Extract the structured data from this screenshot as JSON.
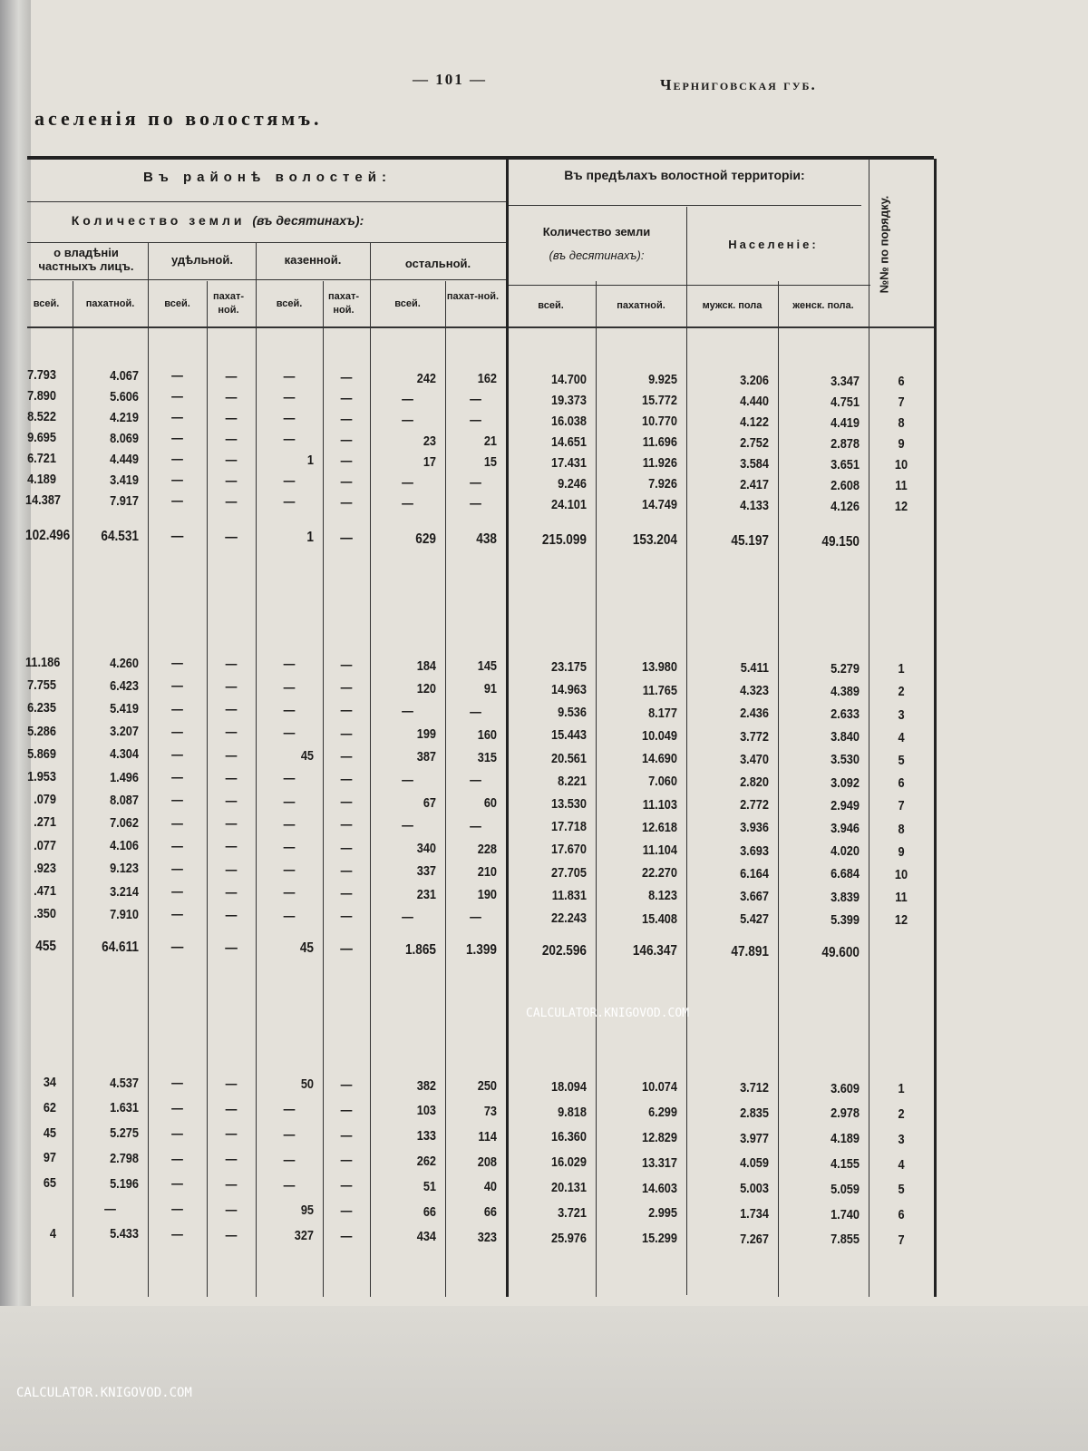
{
  "page": {
    "number": "— 101 —",
    "running_head": "Черниговская губ.",
    "title": "аселенія по волостямъ."
  },
  "watermark": "CALCULATOR.KNIGOVOD.COM",
  "header": {
    "group_district": "Въ районѣ волостей:",
    "group_territory": "Въ предѣлахъ волостной территоріи:",
    "land_qty": "Количество земли",
    "land_unit": "(въ десятинахъ):",
    "private": "о владѣніи частныхъ лицъ.",
    "appanage": "удѣльной.",
    "state": "казенной.",
    "other": "остальной.",
    "terr_land": "Количество земли",
    "terr_unit": "(въ десятинахъ):",
    "population": "Населеніе:",
    "order_no": "№№ по порядку.",
    "sub": [
      "всей.",
      "пахатной.",
      "всей.",
      "пахат-ной.",
      "всей.",
      "пахат-ной.",
      "всей.",
      "пахат-ной.",
      "всей.",
      "пахатной.",
      "мужск. пола",
      "женск. пола."
    ]
  },
  "sections": [
    {
      "rows": [
        [
          "7.793",
          "4.067",
          "—",
          "—",
          "—",
          "—",
          "242",
          "162",
          "14.700",
          "9.925",
          "3.206",
          "3.347",
          "6"
        ],
        [
          "7.890",
          "5.606",
          "—",
          "—",
          "—",
          "—",
          "—",
          "—",
          "19.373",
          "15.772",
          "4.440",
          "4.751",
          "7"
        ],
        [
          "8.522",
          "4.219",
          "—",
          "—",
          "—",
          "—",
          "—",
          "—",
          "16.038",
          "10.770",
          "4.122",
          "4.419",
          "8"
        ],
        [
          "9.695",
          "8.069",
          "—",
          "—",
          "—",
          "—",
          "23",
          "21",
          "14.651",
          "11.696",
          "2.752",
          "2.878",
          "9"
        ],
        [
          "6.721",
          "4.449",
          "—",
          "—",
          "1",
          "—",
          "17",
          "15",
          "17.431",
          "11.926",
          "3.584",
          "3.651",
          "10"
        ],
        [
          "4.189",
          "3.419",
          "—",
          "—",
          "—",
          "—",
          "—",
          "—",
          "9.246",
          "7.926",
          "2.417",
          "2.608",
          "11"
        ],
        [
          "14.387",
          "7.917",
          "—",
          "—",
          "—",
          "—",
          "—",
          "—",
          "24.101",
          "14.749",
          "4.133",
          "4.126",
          "12"
        ]
      ],
      "total": [
        "102.496",
        "64.531",
        "—",
        "—",
        "1",
        "—",
        "629",
        "438",
        "215.099",
        "153.204",
        "45.197",
        "49.150",
        ""
      ]
    },
    {
      "rows": [
        [
          "11.186",
          "4.260",
          "—",
          "—",
          "—",
          "—",
          "184",
          "145",
          "23.175",
          "13.980",
          "5.411",
          "5.279",
          "1"
        ],
        [
          "7.755",
          "6.423",
          "—",
          "—",
          "—",
          "—",
          "120",
          "91",
          "14.963",
          "11.765",
          "4.323",
          "4.389",
          "2"
        ],
        [
          "6.235",
          "5.419",
          "—",
          "—",
          "—",
          "—",
          "—",
          "—",
          "9.536",
          "8.177",
          "2.436",
          "2.633",
          "3"
        ],
        [
          "5.286",
          "3.207",
          "—",
          "—",
          "—",
          "—",
          "199",
          "160",
          "15.443",
          "10.049",
          "3.772",
          "3.840",
          "4"
        ],
        [
          "5.869",
          "4.304",
          "—",
          "—",
          "45",
          "—",
          "387",
          "315",
          "20.561",
          "14.690",
          "3.470",
          "3.530",
          "5"
        ],
        [
          "1.953",
          "1.496",
          "—",
          "—",
          "—",
          "—",
          "—",
          "—",
          "8.221",
          "7.060",
          "2.820",
          "3.092",
          "6"
        ],
        [
          ".079",
          "8.087",
          "—",
          "—",
          "—",
          "—",
          "67",
          "60",
          "13.530",
          "11.103",
          "2.772",
          "2.949",
          "7"
        ],
        [
          ".271",
          "7.062",
          "—",
          "—",
          "—",
          "—",
          "—",
          "—",
          "17.718",
          "12.618",
          "3.936",
          "3.946",
          "8"
        ],
        [
          ".077",
          "4.106",
          "—",
          "—",
          "—",
          "—",
          "340",
          "228",
          "17.670",
          "11.104",
          "3.693",
          "4.020",
          "9"
        ],
        [
          ".923",
          "9.123",
          "—",
          "—",
          "—",
          "—",
          "337",
          "210",
          "27.705",
          "22.270",
          "6.164",
          "6.684",
          "10"
        ],
        [
          ".471",
          "3.214",
          "—",
          "—",
          "—",
          "—",
          "231",
          "190",
          "11.831",
          "8.123",
          "3.667",
          "3.839",
          "11"
        ],
        [
          ".350",
          "7.910",
          "—",
          "—",
          "—",
          "—",
          "—",
          "—",
          "22.243",
          "15.408",
          "5.427",
          "5.399",
          "12"
        ]
      ],
      "total": [
        "455",
        "64.611",
        "—",
        "—",
        "45",
        "—",
        "1.865",
        "1.399",
        "202.596",
        "146.347",
        "47.891",
        "49.600",
        ""
      ]
    },
    {
      "rows": [
        [
          "34",
          "4.537",
          "—",
          "—",
          "50",
          "—",
          "382",
          "250",
          "18.094",
          "10.074",
          "3.712",
          "3.609",
          "1"
        ],
        [
          "62",
          "1.631",
          "—",
          "—",
          "—",
          "—",
          "103",
          "73",
          "9.818",
          "6.299",
          "2.835",
          "2.978",
          "2"
        ],
        [
          "45",
          "5.275",
          "—",
          "—",
          "—",
          "—",
          "133",
          "114",
          "16.360",
          "12.829",
          "3.977",
          "4.189",
          "3"
        ],
        [
          "97",
          "2.798",
          "—",
          "—",
          "—",
          "—",
          "262",
          "208",
          "16.029",
          "13.317",
          "4.059",
          "4.155",
          "4"
        ],
        [
          "65",
          "5.196",
          "—",
          "—",
          "—",
          "—",
          "51",
          "40",
          "20.131",
          "14.603",
          "5.003",
          "5.059",
          "5"
        ],
        [
          "",
          "—",
          "—",
          "—",
          "95",
          "—",
          "66",
          "66",
          "3.721",
          "2.995",
          "1.734",
          "1.740",
          "6"
        ],
        [
          "4",
          "5.433",
          "—",
          "—",
          "327",
          "—",
          "434",
          "323",
          "25.976",
          "15.299",
          "7.267",
          "7.855",
          "7"
        ]
      ]
    }
  ]
}
